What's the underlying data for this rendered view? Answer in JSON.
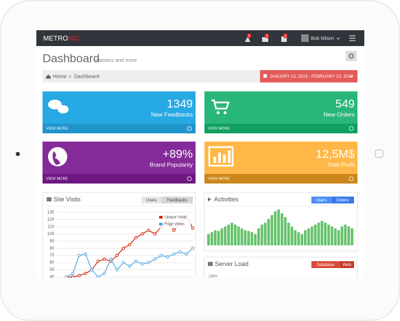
{
  "nav": {
    "logo_a": "METRO",
    "logo_b": "NIC",
    "badges": [
      "9",
      "5",
      "5"
    ],
    "user": "Bob Nilson"
  },
  "header": {
    "title": "Dashboard",
    "subtitle": "statistics and more"
  },
  "breadcrumb": [
    "Home",
    "Dashboard"
  ],
  "date_range": "JANUARY 12, 2013 - FEBRUARY 10, 2013",
  "tiles": [
    {
      "number": "1349",
      "label": "New Feedbacks",
      "link": "VIEW MORE"
    },
    {
      "number": "549",
      "label": "New Orders",
      "link": "VIEW MORE"
    },
    {
      "number": "+89%",
      "label": "Brand Popularity",
      "link": "VIEW MORE"
    },
    {
      "number": "12,5M$",
      "label": "Total Profit",
      "link": "VIEW MORE"
    }
  ],
  "site_visits": {
    "title": "Site Visits",
    "tabs": [
      "Users",
      "Feedbacks"
    ],
    "ylim": [
      40,
      130
    ],
    "yticks": [
      40,
      50,
      60,
      70,
      80,
      90,
      100,
      110,
      120,
      130
    ],
    "series": [
      {
        "name": "Unique Visits",
        "color": "#d12610",
        "values": [
          40,
          40,
          42,
          45,
          50,
          62,
          65,
          62,
          70,
          80,
          85,
          95,
          100,
          105,
          100,
          110,
          120,
          105,
          115,
          125,
          108
        ]
      },
      {
        "name": "Page Views",
        "color": "#52a8e0",
        "values": [
          40,
          45,
          70,
          72,
          50,
          40,
          45,
          65,
          50,
          60,
          55,
          62,
          58,
          60,
          65,
          70,
          68,
          72,
          75,
          72,
          80
        ]
      }
    ]
  },
  "activities": {
    "title": "Activities",
    "tabs": [
      "Users",
      "Orders"
    ],
    "color": "#66c26b",
    "values": [
      30,
      35,
      40,
      38,
      45,
      50,
      55,
      60,
      55,
      50,
      45,
      40,
      38,
      35,
      30,
      45,
      55,
      60,
      70,
      80,
      90,
      95,
      85,
      75,
      60,
      50,
      40,
      35,
      30,
      40,
      45,
      50,
      55,
      60,
      65,
      60,
      55,
      50,
      45,
      40,
      50,
      55,
      50,
      45
    ]
  },
  "server_load": {
    "title": "Server Load",
    "tabs": [
      "Database",
      "Web"
    ],
    "label": "100%"
  }
}
